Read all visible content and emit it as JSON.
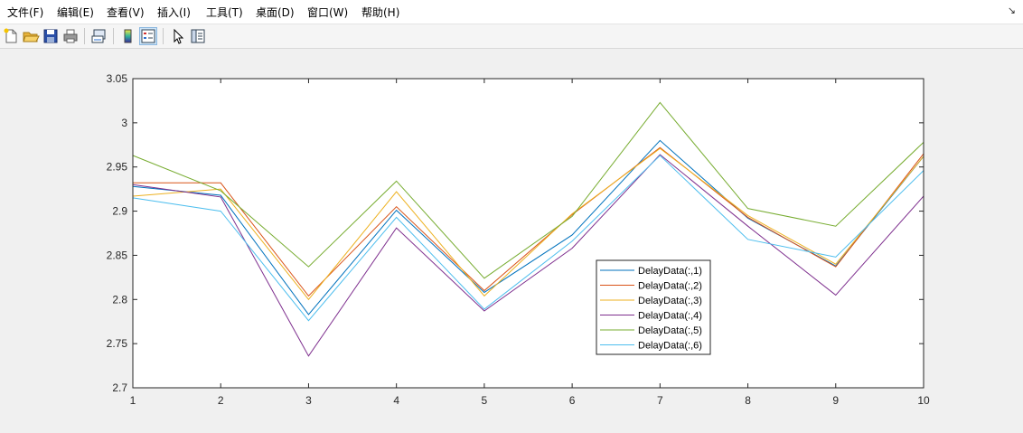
{
  "menubar": {
    "items": [
      "文件(F)",
      "编辑(E)",
      "查看(V)",
      "插入(I)",
      "工具(T)",
      "桌面(D)",
      "窗口(W)",
      "帮助(H)"
    ],
    "corner_glyph": "↘"
  },
  "toolbar": {
    "buttons": [
      "new-figure-icon",
      "open-file-icon",
      "save-icon",
      "print-icon",
      "link-plot-icon",
      "colorbar-icon",
      "legend-icon",
      "pointer-icon",
      "property-inspector-icon"
    ]
  },
  "chart_data": {
    "type": "line",
    "x": [
      1,
      2,
      3,
      4,
      5,
      6,
      7,
      8,
      9,
      10
    ],
    "xlim": [
      1,
      10
    ],
    "ylim": [
      2.7,
      3.05
    ],
    "xticks": [
      "1",
      "2",
      "3",
      "4",
      "5",
      "6",
      "7",
      "8",
      "9",
      "10"
    ],
    "yticks": [
      "2.7",
      "2.75",
      "2.8",
      "2.85",
      "2.9",
      "2.95",
      "3",
      "3.05"
    ],
    "title": "",
    "xlabel": "",
    "ylabel": "",
    "grid": false,
    "legend_position": "center-right",
    "series": [
      {
        "name": "DelayData(:,1)",
        "color": "#0072bd",
        "values": [
          2.928,
          2.918,
          2.783,
          2.901,
          2.808,
          2.873,
          2.98,
          2.892,
          2.838,
          2.962
        ]
      },
      {
        "name": "DelayData(:,2)",
        "color": "#d95319",
        "values": [
          2.932,
          2.932,
          2.804,
          2.905,
          2.81,
          2.896,
          2.972,
          2.893,
          2.837,
          2.965
        ]
      },
      {
        "name": "DelayData(:,3)",
        "color": "#edb120",
        "values": [
          2.917,
          2.925,
          2.8,
          2.922,
          2.804,
          2.897,
          2.971,
          2.895,
          2.84,
          2.962
        ]
      },
      {
        "name": "DelayData(:,4)",
        "color": "#7e2f8e",
        "values": [
          2.93,
          2.916,
          2.736,
          2.881,
          2.787,
          2.858,
          2.964,
          2.883,
          2.805,
          2.917
        ]
      },
      {
        "name": "DelayData(:,5)",
        "color": "#77ac30",
        "values": [
          2.963,
          2.923,
          2.837,
          2.934,
          2.824,
          2.894,
          3.023,
          2.903,
          2.883,
          2.978
        ]
      },
      {
        "name": "DelayData(:,6)",
        "color": "#4dbeee",
        "values": [
          2.915,
          2.9,
          2.776,
          2.893,
          2.789,
          2.866,
          2.963,
          2.868,
          2.848,
          2.946
        ]
      }
    ]
  }
}
